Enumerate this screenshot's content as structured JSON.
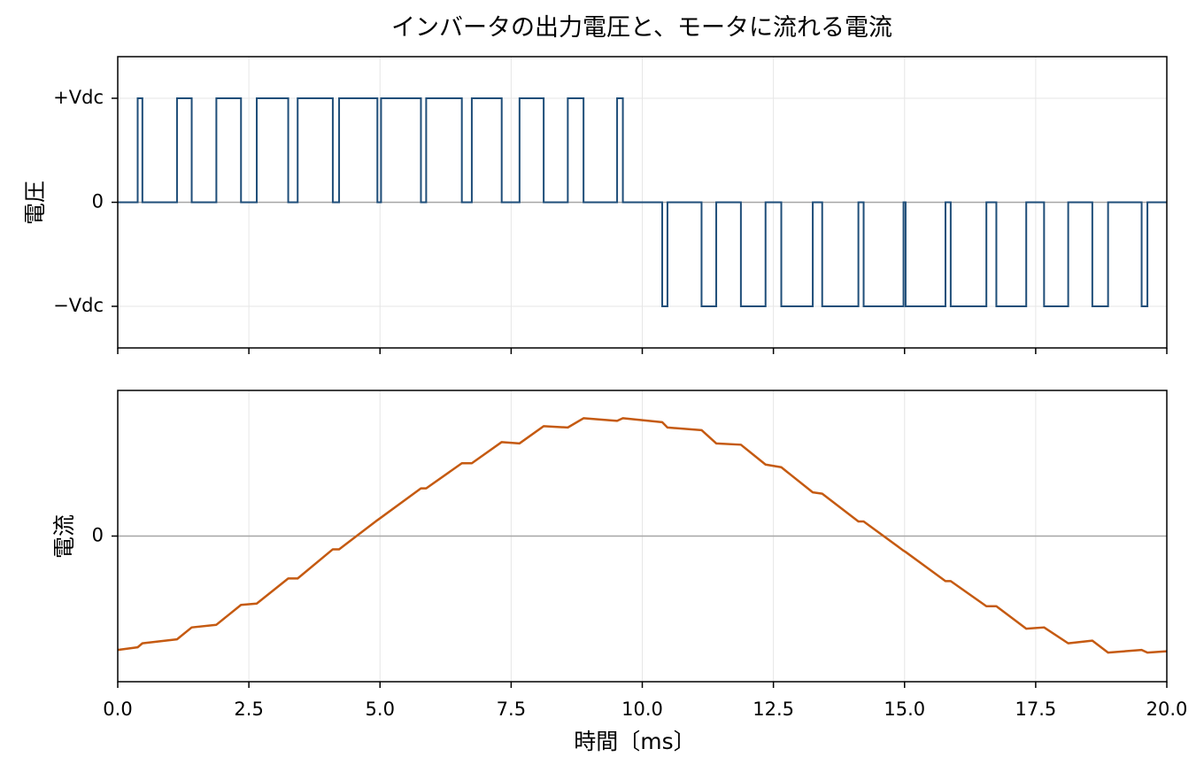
{
  "title": "インバータの出力電圧と、モータに流れる電流",
  "colors": {
    "voltage": "#1f4e79",
    "current": "#c55a11",
    "zero_line": "#a6a6a6",
    "grid": "#e6e6e6",
    "frame": "#000000"
  },
  "chart_data": [
    {
      "type": "line",
      "subtype": "step",
      "ylabel": "電圧",
      "xlim": [
        0,
        20
      ],
      "ylim": [
        -1.4,
        1.4
      ],
      "x_ticks": [
        0,
        2.5,
        5,
        7.5,
        10,
        12.5,
        15,
        17.5,
        20
      ],
      "y_ticks": [
        {
          "value": 1,
          "label": "+Vdc"
        },
        {
          "value": 0,
          "label": "0"
        },
        {
          "value": -1,
          "label": "−Vdc"
        }
      ],
      "grid": true,
      "zero_line": true,
      "series": [
        {
          "pulses": [
            {
              "start": 0.38,
              "end": 0.47,
              "level": 1
            },
            {
              "start": 1.13,
              "end": 1.41,
              "level": 1
            },
            {
              "start": 1.88,
              "end": 2.35,
              "level": 1
            },
            {
              "start": 2.65,
              "end": 3.25,
              "level": 1
            },
            {
              "start": 3.43,
              "end": 4.1,
              "level": 1
            },
            {
              "start": 4.22,
              "end": 4.95,
              "level": 1
            },
            {
              "start": 5.02,
              "end": 5.78,
              "level": 1
            },
            {
              "start": 5.88,
              "end": 6.56,
              "level": 1
            },
            {
              "start": 6.75,
              "end": 7.32,
              "level": 1
            },
            {
              "start": 7.66,
              "end": 8.12,
              "level": 1
            },
            {
              "start": 8.58,
              "end": 8.88,
              "level": 1
            },
            {
              "start": 9.52,
              "end": 9.63,
              "level": 1
            },
            {
              "start": 10.38,
              "end": 10.48,
              "level": -1
            },
            {
              "start": 11.13,
              "end": 11.41,
              "level": -1
            },
            {
              "start": 11.88,
              "end": 12.35,
              "level": -1
            },
            {
              "start": 12.65,
              "end": 13.25,
              "level": -1
            },
            {
              "start": 13.43,
              "end": 14.12,
              "level": -1
            },
            {
              "start": 14.22,
              "end": 14.98,
              "level": -1
            },
            {
              "start": 15.02,
              "end": 15.78,
              "level": -1
            },
            {
              "start": 15.88,
              "end": 16.56,
              "level": -1
            },
            {
              "start": 16.75,
              "end": 17.32,
              "level": -1
            },
            {
              "start": 17.66,
              "end": 18.12,
              "level": -1
            },
            {
              "start": 18.58,
              "end": 18.88,
              "level": -1
            },
            {
              "start": 19.52,
              "end": 19.63,
              "level": -1
            }
          ]
        }
      ]
    },
    {
      "type": "line",
      "ylabel": "電流",
      "xlabel": "時間〔ms〕",
      "xlim": [
        0,
        20
      ],
      "ylim": [
        -1.1,
        1.1
      ],
      "x_ticks": [
        0,
        2.5,
        5,
        7.5,
        10,
        12.5,
        15,
        17.5,
        20
      ],
      "x_tick_labels": [
        "0.0",
        "2.5",
        "5.0",
        "7.5",
        "10.0",
        "12.5",
        "15.0",
        "17.5",
        "20.0"
      ],
      "y_ticks": [
        {
          "value": 0,
          "label": "0"
        }
      ],
      "grid": true,
      "zero_line": true,
      "series": [
        {
          "x": [
            0,
            0.38,
            0.47,
            1.13,
            1.41,
            1.88,
            2.35,
            2.65,
            3.25,
            3.43,
            4.1,
            4.22,
            4.95,
            5.02,
            5.78,
            5.88,
            6.56,
            6.75,
            7.32,
            7.66,
            8.12,
            8.58,
            8.88,
            9.52,
            9.63,
            10.38,
            10.48,
            11.13,
            11.41,
            11.88,
            12.35,
            12.65,
            13.25,
            13.43,
            14.12,
            14.22,
            14.98,
            15.02,
            15.78,
            15.88,
            16.56,
            16.75,
            17.32,
            17.66,
            18.12,
            18.58,
            18.88,
            19.52,
            19.63,
            20
          ],
          "y": [
            -0.86,
            -0.84,
            -0.81,
            -0.78,
            -0.69,
            -0.67,
            -0.52,
            -0.51,
            -0.32,
            -0.32,
            -0.1,
            -0.1,
            0.12,
            0.14,
            0.36,
            0.36,
            0.55,
            0.55,
            0.71,
            0.7,
            0.83,
            0.82,
            0.89,
            0.87,
            0.89,
            0.86,
            0.82,
            0.8,
            0.7,
            0.69,
            0.54,
            0.52,
            0.33,
            0.32,
            0.11,
            0.11,
            -0.11,
            -0.12,
            -0.34,
            -0.34,
            -0.53,
            -0.53,
            -0.7,
            -0.69,
            -0.81,
            -0.79,
            -0.88,
            -0.86,
            -0.88,
            -0.87
          ]
        }
      ]
    }
  ]
}
